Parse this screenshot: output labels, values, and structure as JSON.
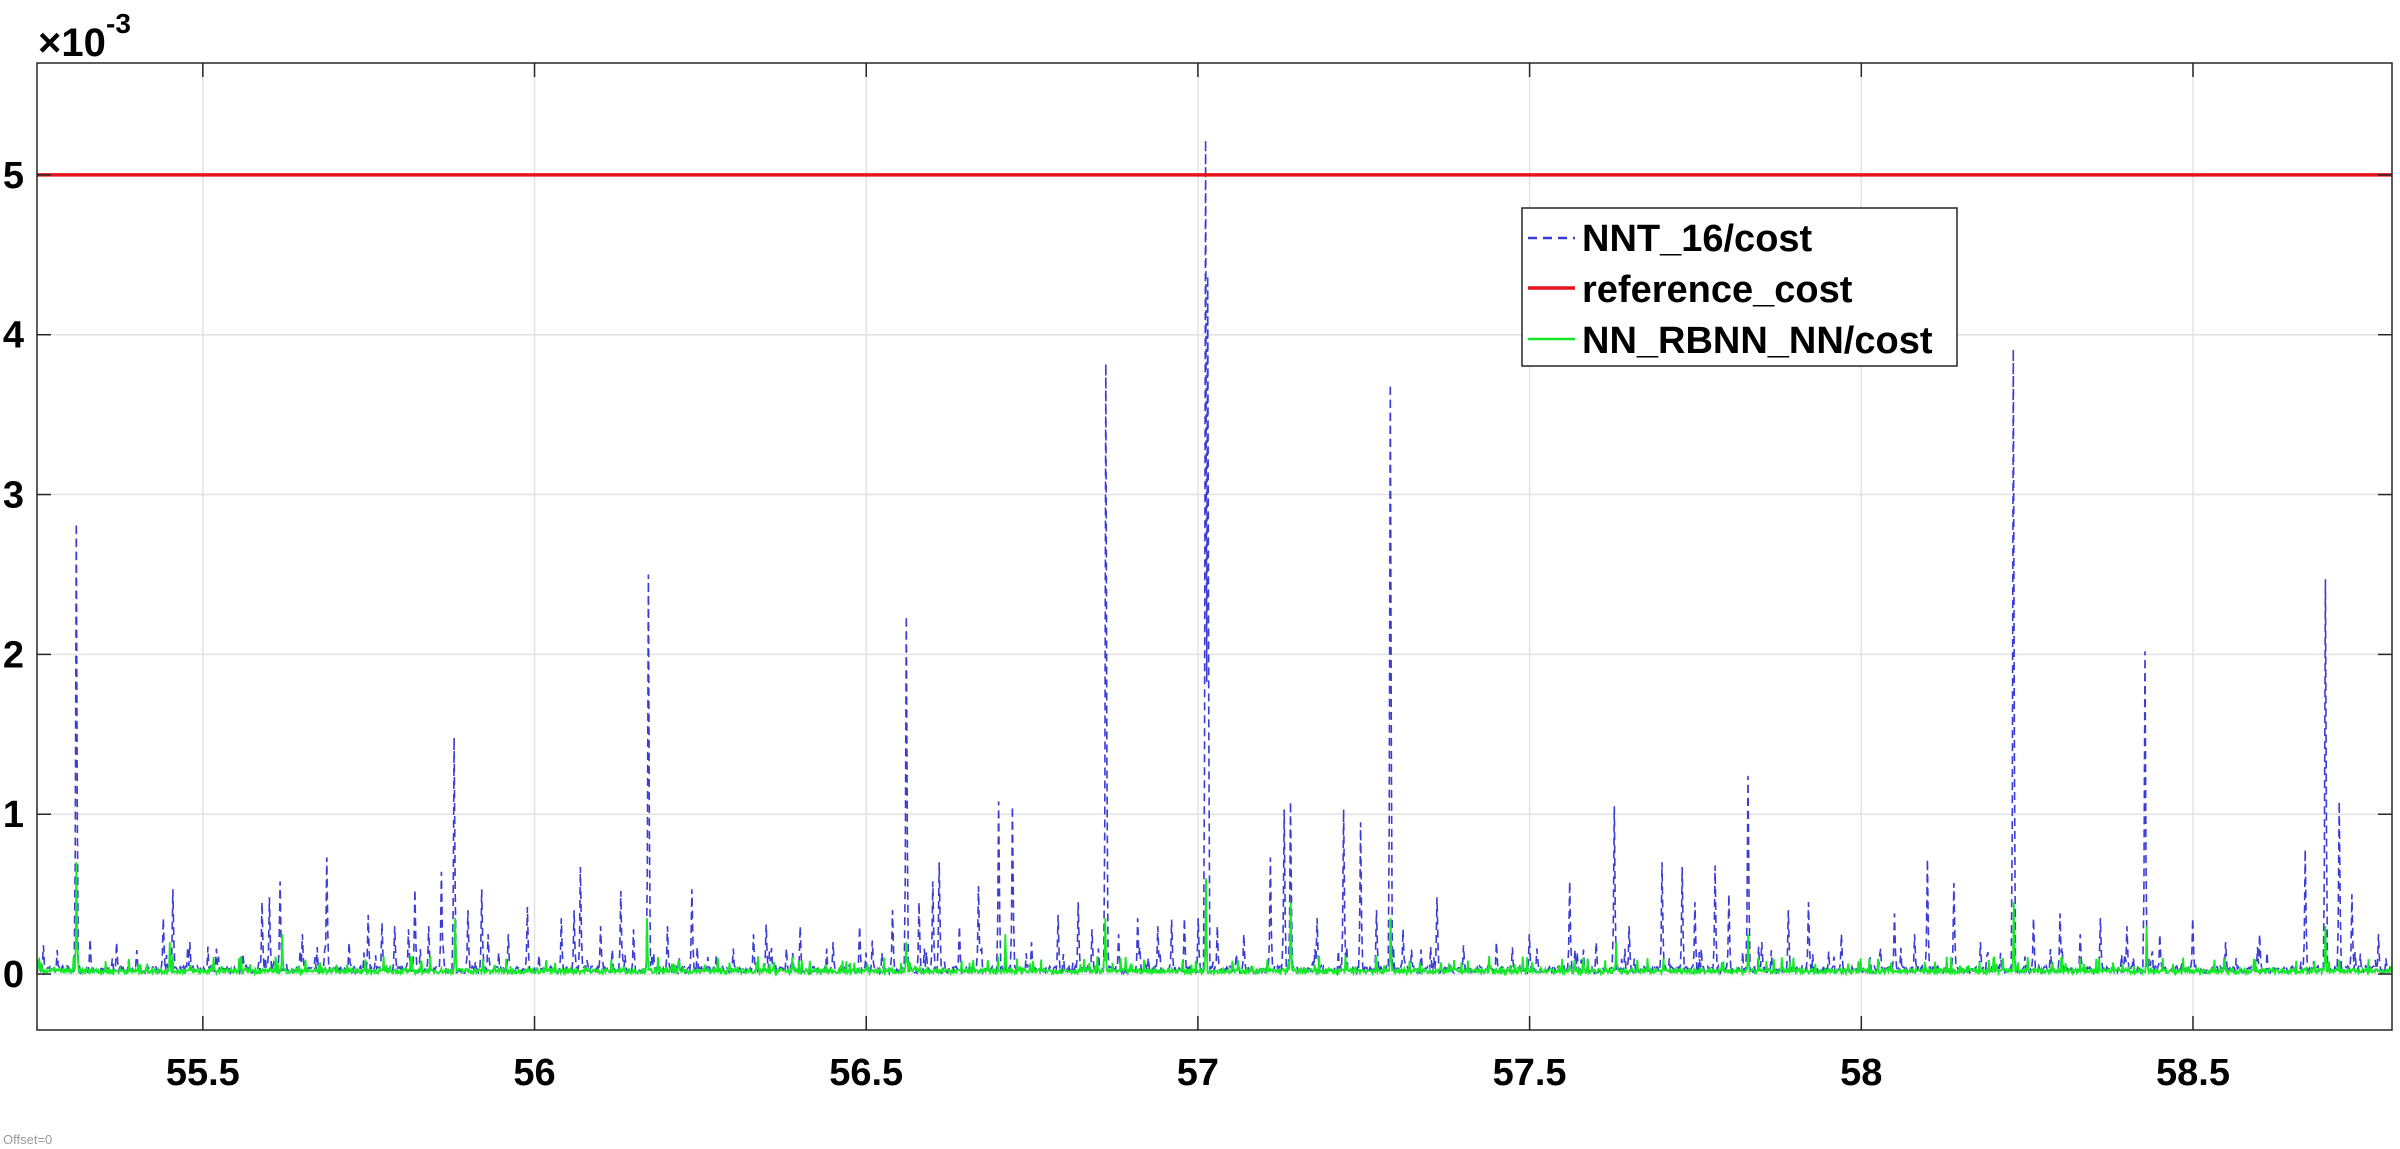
{
  "chart_data": {
    "type": "line",
    "title": "",
    "xlabel": "",
    "ylabel": "",
    "xlim": [
      55.25,
      58.8
    ],
    "ylim": [
      -0.00035,
      0.0057
    ],
    "x_ticks": [
      55.5,
      56,
      56.5,
      57,
      57.5,
      58,
      58.5
    ],
    "x_tick_labels": [
      "55.5",
      "56",
      "56.5",
      "57",
      "57.5",
      "58",
      "58.5"
    ],
    "y_ticks": [
      0,
      0.001,
      0.002,
      0.003,
      0.004,
      0.005
    ],
    "y_tick_labels": [
      "0",
      "1",
      "2",
      "3",
      "4",
      "5"
    ],
    "y_exponent": {
      "base": "10",
      "power": "-3"
    },
    "grid": true,
    "legend_position": "top-right",
    "footnote": "Offset=0",
    "series": [
      {
        "name": "NNT_16/cost",
        "color": "#3b3bd6",
        "style": "dashed",
        "baseline": 3e-05,
        "spikes": [
          [
            55.26,
            0.00018
          ],
          [
            55.28,
            0.00015
          ],
          [
            55.309,
            0.00282
          ],
          [
            55.33,
            0.00022
          ],
          [
            55.37,
            0.0002
          ],
          [
            55.4,
            0.00015
          ],
          [
            55.44,
            0.00035
          ],
          [
            55.455,
            0.00053
          ],
          [
            55.48,
            0.0002
          ],
          [
            55.52,
            0.00016
          ],
          [
            55.56,
            0.00013
          ],
          [
            55.59,
            0.00045
          ],
          [
            55.6,
            0.00048
          ],
          [
            55.617,
            0.00058
          ],
          [
            55.65,
            0.00025
          ],
          [
            55.687,
            0.00073
          ],
          [
            55.72,
            0.0002
          ],
          [
            55.75,
            0.00037
          ],
          [
            55.77,
            0.00032
          ],
          [
            55.79,
            0.0003
          ],
          [
            55.81,
            0.00028
          ],
          [
            55.82,
            0.00053
          ],
          [
            55.84,
            0.0003
          ],
          [
            55.86,
            0.00064
          ],
          [
            55.879,
            0.00148
          ],
          [
            55.9,
            0.0004
          ],
          [
            55.92,
            0.00053
          ],
          [
            55.93,
            0.00025
          ],
          [
            55.96,
            0.00025
          ],
          [
            55.99,
            0.00042
          ],
          [
            56.04,
            0.00035
          ],
          [
            56.06,
            0.0004
          ],
          [
            56.07,
            0.00067
          ],
          [
            56.1,
            0.0003
          ],
          [
            56.13,
            0.00052
          ],
          [
            56.15,
            0.00028
          ],
          [
            56.172,
            0.0025
          ],
          [
            56.2,
            0.0003
          ],
          [
            56.237,
            0.00053
          ],
          [
            56.3,
            0.00016
          ],
          [
            56.33,
            0.00025
          ],
          [
            56.35,
            0.00031
          ],
          [
            56.38,
            0.00016
          ],
          [
            56.4,
            0.0003
          ],
          [
            56.45,
            0.0002
          ],
          [
            56.49,
            0.0003
          ],
          [
            56.51,
            0.00021
          ],
          [
            56.54,
            0.0004
          ],
          [
            56.56,
            0.00224
          ],
          [
            56.58,
            0.00045
          ],
          [
            56.6,
            0.00058
          ],
          [
            56.61,
            0.0007
          ],
          [
            56.64,
            0.0003
          ],
          [
            56.67,
            0.00055
          ],
          [
            56.7,
            0.00108
          ],
          [
            56.72,
            0.00105
          ],
          [
            56.75,
            0.0002
          ],
          [
            56.79,
            0.00037
          ],
          [
            56.82,
            0.00045
          ],
          [
            56.84,
            0.00028
          ],
          [
            56.862,
            0.00382
          ],
          [
            56.88,
            0.00025
          ],
          [
            56.91,
            0.00035
          ],
          [
            56.94,
            0.0003
          ],
          [
            56.96,
            0.00034
          ],
          [
            56.98,
            0.00035
          ],
          [
            57.0,
            0.00035
          ],
          [
            57.012,
            0.00522
          ],
          [
            57.015,
            0.00437
          ],
          [
            57.03,
            0.0003
          ],
          [
            57.07,
            0.00025
          ],
          [
            57.11,
            0.00073
          ],
          [
            57.13,
            0.00103
          ],
          [
            57.14,
            0.00108
          ],
          [
            57.18,
            0.00035
          ],
          [
            57.22,
            0.00103
          ],
          [
            57.245,
            0.00095
          ],
          [
            57.27,
            0.0004
          ],
          [
            57.29,
            0.00369
          ],
          [
            57.31,
            0.00028
          ],
          [
            57.36,
            0.00048
          ],
          [
            57.4,
            0.00018
          ],
          [
            57.45,
            0.0002
          ],
          [
            57.5,
            0.00025
          ],
          [
            57.56,
            0.00058
          ],
          [
            57.6,
            0.0002
          ],
          [
            57.628,
            0.00105
          ],
          [
            57.65,
            0.0003
          ],
          [
            57.7,
            0.0007
          ],
          [
            57.73,
            0.00067
          ],
          [
            57.75,
            0.00045
          ],
          [
            57.78,
            0.00068
          ],
          [
            57.8,
            0.0005
          ],
          [
            57.83,
            0.00124
          ],
          [
            57.85,
            0.0002
          ],
          [
            57.89,
            0.0004
          ],
          [
            57.92,
            0.00045
          ],
          [
            57.97,
            0.00025
          ],
          [
            58.05,
            0.00038
          ],
          [
            58.08,
            0.00025
          ],
          [
            58.1,
            0.00072
          ],
          [
            58.14,
            0.00057
          ],
          [
            58.18,
            0.0002
          ],
          [
            58.23,
            0.00391
          ],
          [
            58.26,
            0.00035
          ],
          [
            58.3,
            0.00038
          ],
          [
            58.33,
            0.00025
          ],
          [
            58.36,
            0.00035
          ],
          [
            58.4,
            0.0003
          ],
          [
            58.428,
            0.00202
          ],
          [
            58.45,
            0.00025
          ],
          [
            58.5,
            0.00035
          ],
          [
            58.55,
            0.0002
          ],
          [
            58.6,
            0.00025
          ],
          [
            58.67,
            0.00078
          ],
          [
            58.7,
            0.00247
          ],
          [
            58.72,
            0.00108
          ],
          [
            58.74,
            0.0005
          ],
          [
            58.78,
            0.00025
          ]
        ]
      },
      {
        "name": "reference_cost",
        "color": "#e8141c",
        "style": "solid",
        "constant": 0.005
      },
      {
        "name": "NN_RBNN_NN/cost",
        "color": "#14e828",
        "style": "solid",
        "baseline": 2e-05,
        "spikes": [
          [
            55.309,
            0.0007
          ],
          [
            55.45,
            0.0002
          ],
          [
            55.62,
            0.00025
          ],
          [
            55.88,
            0.00035
          ],
          [
            56.17,
            0.00035
          ],
          [
            56.56,
            0.0002
          ],
          [
            56.71,
            0.00025
          ],
          [
            56.86,
            0.00035
          ],
          [
            57.012,
            0.0006
          ],
          [
            57.14,
            0.00045
          ],
          [
            57.29,
            0.00035
          ],
          [
            57.63,
            0.0002
          ],
          [
            57.83,
            0.00025
          ],
          [
            58.23,
            0.00045
          ],
          [
            58.43,
            0.0003
          ],
          [
            58.7,
            0.0003
          ]
        ]
      }
    ]
  }
}
